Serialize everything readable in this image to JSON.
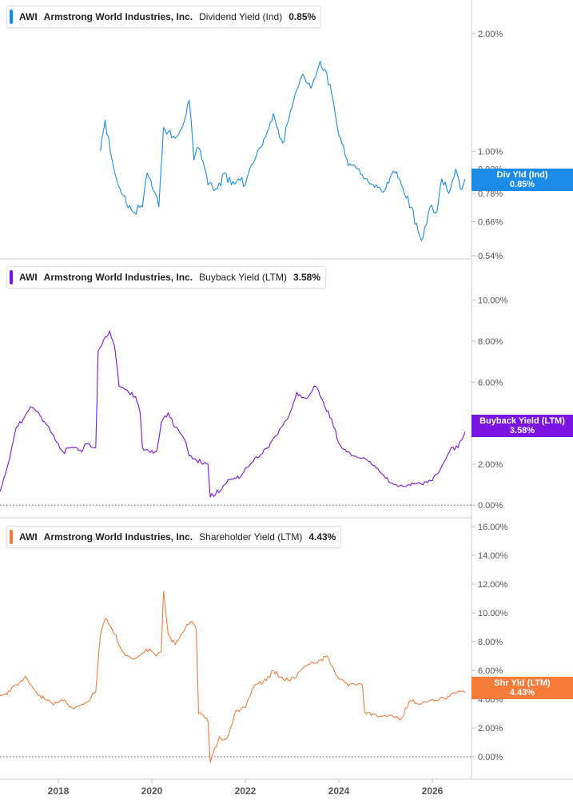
{
  "panels": [
    {
      "ticker": "AWI",
      "company": "Armstrong World Industries, Inc.",
      "metric": "Dividend Yield (Ind)",
      "value": "0.85%",
      "color": "#1a8ce8",
      "tag_label": "Div Yld (Ind)",
      "tag_value": "0.85%",
      "y_ticks": [
        "2.00%",
        "1.00%",
        "0.90%",
        "0.78%",
        "0.66%",
        "0.54%"
      ]
    },
    {
      "ticker": "AWI",
      "company": "Armstrong World Industries, Inc.",
      "metric": "Buyback Yield (LTM)",
      "value": "3.58%",
      "color": "#7b14e0",
      "tag_label": "Buyback Yield (LTM)",
      "tag_value": "3.58%",
      "y_ticks": [
        "10.00%",
        "8.00%",
        "6.00%",
        "4.00%",
        "2.00%",
        "0.00%"
      ]
    },
    {
      "ticker": "AWI",
      "company": "Armstrong World Industries, Inc.",
      "metric": "Shareholder Yield (LTM)",
      "value": "4.43%",
      "color": "#f47b3a",
      "tag_label": "Shr Yld (LTM)",
      "tag_value": "4.43%",
      "y_ticks": [
        "16.00%",
        "14.00%",
        "12.00%",
        "10.00%",
        "8.00%",
        "6.00%",
        "4.00%",
        "2.00%",
        "0.00%"
      ]
    }
  ],
  "x_ticks": [
    "2018",
    "2020",
    "2022",
    "2024",
    "2026"
  ],
  "chart_data": [
    {
      "type": "line",
      "title": "AWI Armstrong World Industries, Inc. Dividend Yield (Ind) 0.85%",
      "y_scale": "log",
      "ylim": [
        0.54,
        2.2
      ],
      "y_ticks": [
        2.0,
        1.0,
        0.9,
        0.78,
        0.66,
        0.54
      ],
      "series": [
        {
          "name": "Dividend Yield (Ind)",
          "x": [
            2018.9,
            2019.0,
            2019.15,
            2019.35,
            2019.6,
            2019.8,
            2019.9,
            2020.05,
            2020.15,
            2020.25,
            2020.35,
            2020.5,
            2020.7,
            2020.8,
            2020.9,
            2021.0,
            2021.2,
            2021.4,
            2021.55,
            2021.7,
            2021.85,
            2022.0,
            2022.2,
            2022.4,
            2022.6,
            2022.8,
            2023.0,
            2023.2,
            2023.4,
            2023.6,
            2023.7,
            2023.85,
            2024.0,
            2024.2,
            2024.4,
            2024.6,
            2024.8,
            2025.0,
            2025.2,
            2025.4,
            2025.55,
            2025.7,
            2025.8,
            2025.95,
            2026.1,
            2026.2,
            2026.35,
            2026.5,
            2026.6,
            2026.7
          ],
          "y": [
            1.0,
            1.2,
            0.95,
            0.78,
            0.7,
            0.72,
            0.88,
            0.79,
            0.72,
            1.15,
            1.12,
            1.08,
            1.2,
            1.35,
            0.95,
            1.02,
            0.82,
            0.8,
            0.88,
            0.82,
            0.85,
            0.82,
            0.95,
            1.08,
            1.25,
            1.05,
            1.3,
            1.55,
            1.45,
            1.7,
            1.62,
            1.4,
            1.1,
            0.92,
            0.9,
            0.85,
            0.82,
            0.8,
            0.88,
            0.78,
            0.72,
            0.62,
            0.6,
            0.72,
            0.7,
            0.85,
            0.78,
            0.9,
            0.8,
            0.85
          ]
        }
      ]
    },
    {
      "type": "line",
      "title": "AWI Armstrong World Industries, Inc. Buyback Yield (LTM) 3.58%",
      "ylim": [
        -0.5,
        11
      ],
      "y_ticks": [
        10,
        8,
        6,
        4,
        2,
        0
      ],
      "series": [
        {
          "name": "Buyback Yield (LTM)",
          "x": [
            2016.3,
            2016.7,
            2016.9,
            2017.1,
            2017.25,
            2017.4,
            2017.6,
            2017.8,
            2017.9,
            2018.1,
            2018.3,
            2018.5,
            2018.6,
            2018.8,
            2018.85,
            2019.0,
            2019.1,
            2019.2,
            2019.3,
            2019.5,
            2019.65,
            2019.75,
            2019.8,
            2020.1,
            2020.2,
            2020.35,
            2020.5,
            2020.7,
            2020.8,
            2020.95,
            2021.2,
            2021.25,
            2021.5,
            2021.6,
            2021.9,
            2022.0,
            2022.2,
            2022.5,
            2022.7,
            2022.9,
            2023.1,
            2023.3,
            2023.5,
            2023.7,
            2023.85,
            2024.0,
            2024.2,
            2024.5,
            2024.8,
            2025.0,
            2025.2,
            2025.5,
            2025.8,
            2026.0,
            2026.2,
            2026.4,
            2026.55,
            2026.7
          ],
          "y": [
            0.2,
            0.4,
            1.8,
            3.8,
            4.2,
            4.8,
            4.4,
            3.8,
            3.4,
            2.6,
            2.8,
            2.6,
            3.0,
            2.8,
            7.5,
            8.2,
            8.5,
            7.8,
            5.8,
            5.5,
            5.3,
            4.5,
            2.8,
            2.6,
            4.0,
            4.5,
            3.8,
            3.2,
            2.4,
            2.2,
            2.0,
            0.4,
            0.8,
            1.1,
            1.4,
            1.8,
            2.3,
            2.8,
            3.5,
            4.2,
            5.5,
            5.2,
            5.8,
            4.8,
            4.2,
            3.0,
            2.6,
            2.3,
            1.8,
            1.3,
            1.0,
            1.0,
            1.0,
            1.2,
            1.9,
            2.8,
            2.8,
            3.58
          ]
        }
      ]
    },
    {
      "type": "line",
      "title": "AWI Armstrong World Industries, Inc. Shareholder Yield (LTM) 4.43%",
      "ylim": [
        -1,
        16.5
      ],
      "y_ticks": [
        16,
        14,
        12,
        10,
        8,
        6,
        4,
        2,
        0
      ],
      "series": [
        {
          "name": "Shareholder Yield (LTM)",
          "x": [
            2016.3,
            2016.6,
            2016.9,
            2017.1,
            2017.3,
            2017.5,
            2017.7,
            2017.9,
            2018.1,
            2018.3,
            2018.6,
            2018.8,
            2018.9,
            2019.0,
            2019.2,
            2019.4,
            2019.6,
            2019.8,
            2019.95,
            2020.1,
            2020.2,
            2020.25,
            2020.35,
            2020.5,
            2020.65,
            2020.75,
            2020.85,
            2020.95,
            2021.0,
            2021.2,
            2021.25,
            2021.45,
            2021.55,
            2021.65,
            2021.8,
            2022.0,
            2022.2,
            2022.45,
            2022.6,
            2022.85,
            2023.1,
            2023.3,
            2023.5,
            2023.75,
            2023.9,
            2024.0,
            2024.2,
            2024.5,
            2024.55,
            2024.8,
            2025.1,
            2025.35,
            2025.5,
            2025.8,
            2026.0,
            2026.3,
            2026.5,
            2026.7
          ],
          "y": [
            3.8,
            4.1,
            4.3,
            5.0,
            5.6,
            4.6,
            4.0,
            3.6,
            3.9,
            3.4,
            3.8,
            4.5,
            8.5,
            9.6,
            8.5,
            7.2,
            6.8,
            7.2,
            7.5,
            7.0,
            7.3,
            11.5,
            8.5,
            7.8,
            8.6,
            9.2,
            9.4,
            8.8,
            3.0,
            2.5,
            -0.4,
            1.4,
            1.2,
            1.6,
            3.2,
            3.4,
            5.0,
            5.3,
            6.0,
            5.3,
            5.6,
            6.3,
            6.5,
            7.0,
            6.0,
            5.4,
            4.9,
            5.0,
            3.1,
            2.9,
            2.9,
            2.7,
            3.8,
            3.8,
            4.0,
            4.0,
            4.4,
            4.43
          ]
        }
      ]
    }
  ]
}
